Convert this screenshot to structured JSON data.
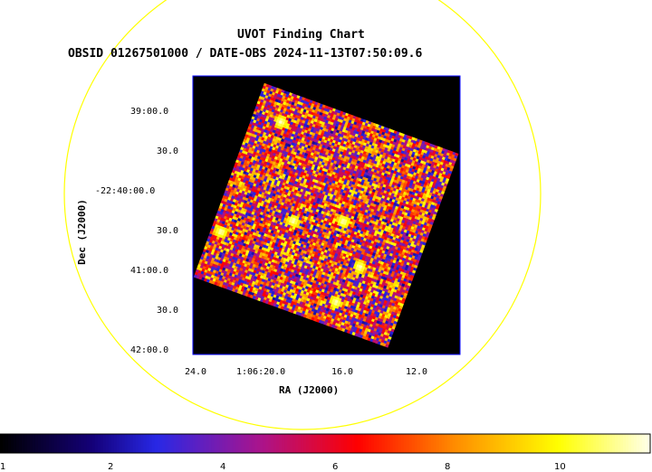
{
  "chart_data": {
    "type": "heatmap",
    "title": "UVOT Finding Chart",
    "subtitle": "OBSID 01267501000 / DATE-OBS 2024-11-13T07:50:09.6",
    "xlabel": "RA (J2000)",
    "ylabel": "Dec (J2000)",
    "x_ticks": [
      "24.0",
      "1:06:20.0",
      "16.0",
      "12.0"
    ],
    "y_ticks": [
      "39:00.0",
      "30.0",
      "-22:40:00.0",
      "30.0",
      "41:00.0",
      "30.0",
      "42:00.0"
    ],
    "colorbar": {
      "ticks": [
        "1",
        "2",
        "4",
        "6",
        "8",
        "10"
      ],
      "range": [
        1,
        11.8
      ],
      "colormap": "heat"
    },
    "image_rotation_deg": -20,
    "bright_sources": [
      {
        "x_frac": 0.59,
        "y_frac": 0.5
      },
      {
        "x_frac": 0.14,
        "y_frac": 0.15
      },
      {
        "x_frac": 0.69,
        "y_frac": 0.88
      },
      {
        "x_frac": 0.05,
        "y_frac": 0.75
      },
      {
        "x_frac": 0.36,
        "y_frac": 0.58
      },
      {
        "x_frac": 0.74,
        "y_frac": 0.68
      }
    ],
    "grid": false,
    "legend": "none"
  },
  "colors": {
    "circle": "#ffff00",
    "frame": "#0000ff",
    "background": "#000000"
  }
}
